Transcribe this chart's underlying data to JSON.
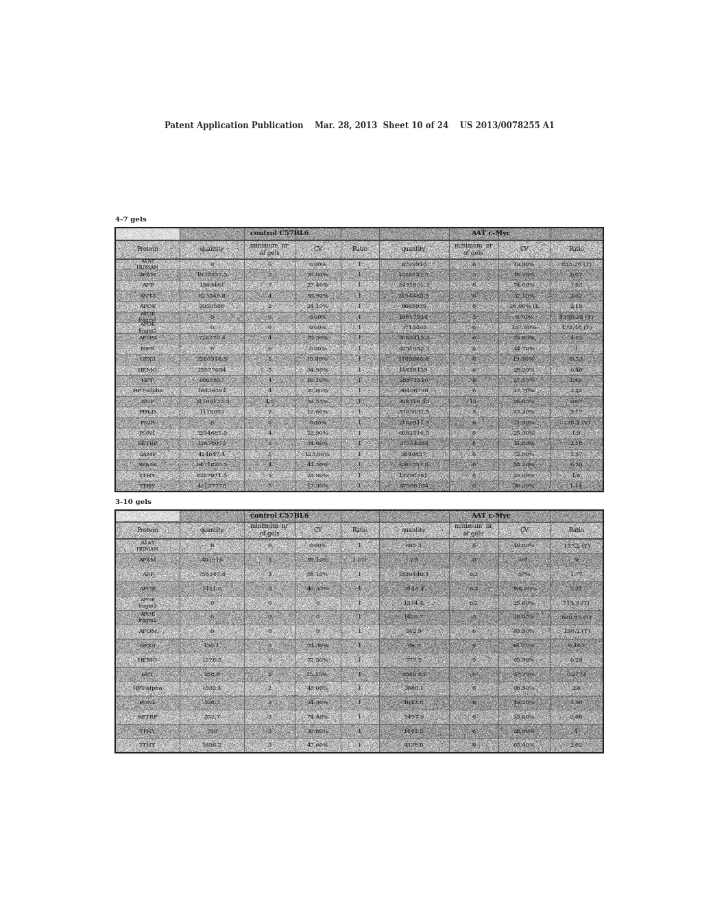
{
  "header_text": "Patent Application Publication    Mar. 28, 2013  Sheet 10 of 24    US 2013/0078255 A1",
  "table1_label": "4-7 gels",
  "table2_label": "3-10 gels",
  "col_headers": [
    "Protein",
    "quantity",
    "minimum  nr\nof gels",
    "CV",
    "Ratio",
    "quantity",
    "minimum  nr\nof gels",
    "CV",
    "Ratio"
  ],
  "section_headers": [
    "control C57BL6",
    "AAT c-Myc"
  ],
  "table1_rows": [
    [
      "A1AT\nHUMAN",
      "0",
      "0",
      "0.00%",
      "1",
      "6709910",
      "6",
      "10.90%",
      "855.26 (T)"
    ],
    [
      "AFAM",
      "1535257.5",
      "3",
      "20.00%",
      "1",
      "1026852.5",
      "3",
      "18.20%",
      "0.67"
    ],
    [
      "AFP",
      "1363401",
      "5",
      "27.40%",
      "1",
      "2492801.3",
      "6",
      "74.00%",
      "1.83"
    ],
    [
      "ANT3",
      "623549.8",
      "4",
      "56.90%",
      "1",
      "2154483.5",
      "6",
      "32.10%",
      "2.62"
    ],
    [
      "APOE",
      "3950566",
      "2",
      "24.10%",
      "1",
      "8665939",
      "6",
      "26.00% (L",
      "2.19"
    ],
    [
      "APOE\nfragm1",
      "0",
      "0",
      "0.00%",
      "1",
      "10617924",
      "3",
      "9.70%",
      "1350.25 (T)"
    ],
    [
      "APOE\nfragm2",
      "0",
      "0",
      "0.00%",
      "1",
      "3715405",
      "6",
      "137.90%",
      "472.48 (T)"
    ],
    [
      "APOM",
      "726370.4",
      "4",
      "35.30%",
      "1",
      "3063415.3",
      "6",
      "20.60%",
      "4.22"
    ],
    [
      "FiBB",
      "0",
      "0",
      "0.00%",
      "1",
      "3231932.3",
      "6",
      "44.70%",
      "1"
    ],
    [
      "GPX3",
      "2280318.5",
      "5",
      "19.40%",
      "1",
      "1189865.6",
      "6",
      "19.30%",
      "0.53"
    ],
    [
      "HEMO",
      "25577654",
      "5",
      "34.90%",
      "1",
      "11828129",
      "6",
      "28.20%",
      "0.46"
    ],
    [
      "HPT",
      "6065857",
      "4",
      "16.10%",
      "1",
      "28871510",
      "6",
      "27.55%",
      "1.49"
    ],
    [
      "HP7-alpha",
      "16429394",
      "4",
      "20.60%",
      "1",
      "36406796",
      "6",
      "27.70%",
      "2.22"
    ],
    [
      "NUP",
      "31100133.5",
      "4.5",
      "53.55%",
      "1",
      "208519.45",
      "15",
      "26.05%",
      "0.07"
    ],
    [
      "PHLD",
      "1118092",
      "2",
      "12.60%",
      "1",
      "5783032.5",
      "5",
      "23.30%",
      "5.17"
    ],
    [
      "PIGR",
      "0",
      "0",
      "0.00%",
      "1",
      "2186911.5",
      "6",
      "21.90%",
      "278.1 (T)"
    ],
    [
      "PON1",
      "3204685.5",
      "4",
      "22.90%",
      "1",
      "6082516.5",
      "6",
      "25.30%",
      "1.9"
    ],
    [
      "RETBP",
      "12678072",
      "5",
      "34.60%",
      "1",
      "27754384",
      "6",
      "31.80%",
      "2.18"
    ],
    [
      "SAMP",
      "414647.4",
      "5",
      "123.00%",
      "1",
      "9840837",
      "6",
      "72.90%",
      "1.37"
    ],
    [
      "SPA3K",
      "6471826.5",
      "4",
      "44.50%",
      "1",
      "1662353.6",
      "6",
      "58.20%",
      "6.20"
    ],
    [
      "TTHY",
      "8267071.5",
      "5",
      "23.90%",
      "1",
      "13298761",
      "6",
      "25.00%",
      "1.6"
    ],
    [
      "TTHY",
      "42157776",
      "5",
      "17.30%",
      "1",
      "47968184",
      "6",
      "30.30%",
      "1.14"
    ]
  ],
  "table2_rows": [
    [
      "A1AT\nHUMAN",
      "0",
      "0",
      "0.00%",
      "1",
      "695.3",
      "6",
      "46.60%",
      "157.2 (T)"
    ],
    [
      "AFAM",
      "401916",
      "3",
      "55.10%",
      "1 (C)",
      "2.9",
      "0",
      "101",
      "0"
    ],
    [
      "AFP",
      "756347.6",
      "3",
      "58.10%",
      "1",
      "1339440.1",
      "6.3",
      "57%",
      "1.77"
    ],
    [
      "APOE",
      "1421.6",
      "3",
      "46.30%",
      "1",
      "3143.4",
      "6.3",
      "768.00%",
      "2.21"
    ],
    [
      "APOE\nfragm1",
      "0",
      "0",
      "0",
      "1",
      "1334.4",
      "6.2",
      "25.60%",
      "715.3 (T)"
    ],
    [
      "APOE\nfragm2",
      "0",
      "0",
      "0",
      "1",
      "1420.7",
      "3",
      "16.05%",
      "600.85 (T)"
    ],
    [
      "APOM",
      "0",
      "0",
      "0",
      "1",
      "242.9",
      "6",
      "65.50%",
      "130.2 (T)"
    ],
    [
      "GPX3",
      "156.1",
      "3",
      "74.30%",
      "1",
      "69.9",
      "6",
      "61.70%",
      "0.443"
    ],
    [
      "HEMO",
      "1276.5",
      "3",
      "72.50%",
      "1",
      "373.5",
      "5",
      "65.90%",
      "0.29"
    ],
    [
      "HPT",
      "258.8",
      "2",
      "15.15%",
      "1",
      "3369.05",
      "6",
      "37.70%",
      "0.2773"
    ],
    [
      "HPT-alpha",
      "1532.1",
      "2",
      "45.00%",
      "1",
      "3680.1",
      "6",
      "08.50%",
      "2.6"
    ],
    [
      "PON1",
      "528.3",
      "3",
      "24.30%",
      "1",
      "1043.8",
      "6",
      "49.20%",
      "1.98"
    ],
    [
      "RETBP",
      "352.7",
      "3",
      "74.40%",
      "1",
      "2497.9",
      "6",
      "25.60%",
      "2.08"
    ],
    [
      "TTHY",
      "750",
      "3",
      "30.80%",
      "1",
      "1441.5",
      "6",
      "28.80%",
      "1"
    ],
    [
      "TTHY",
      "1656.2",
      "3",
      "47.60%",
      "1",
      "4338.8",
      "6",
      "65.40%",
      "2.62"
    ]
  ],
  "bg_color": "#ffffff"
}
